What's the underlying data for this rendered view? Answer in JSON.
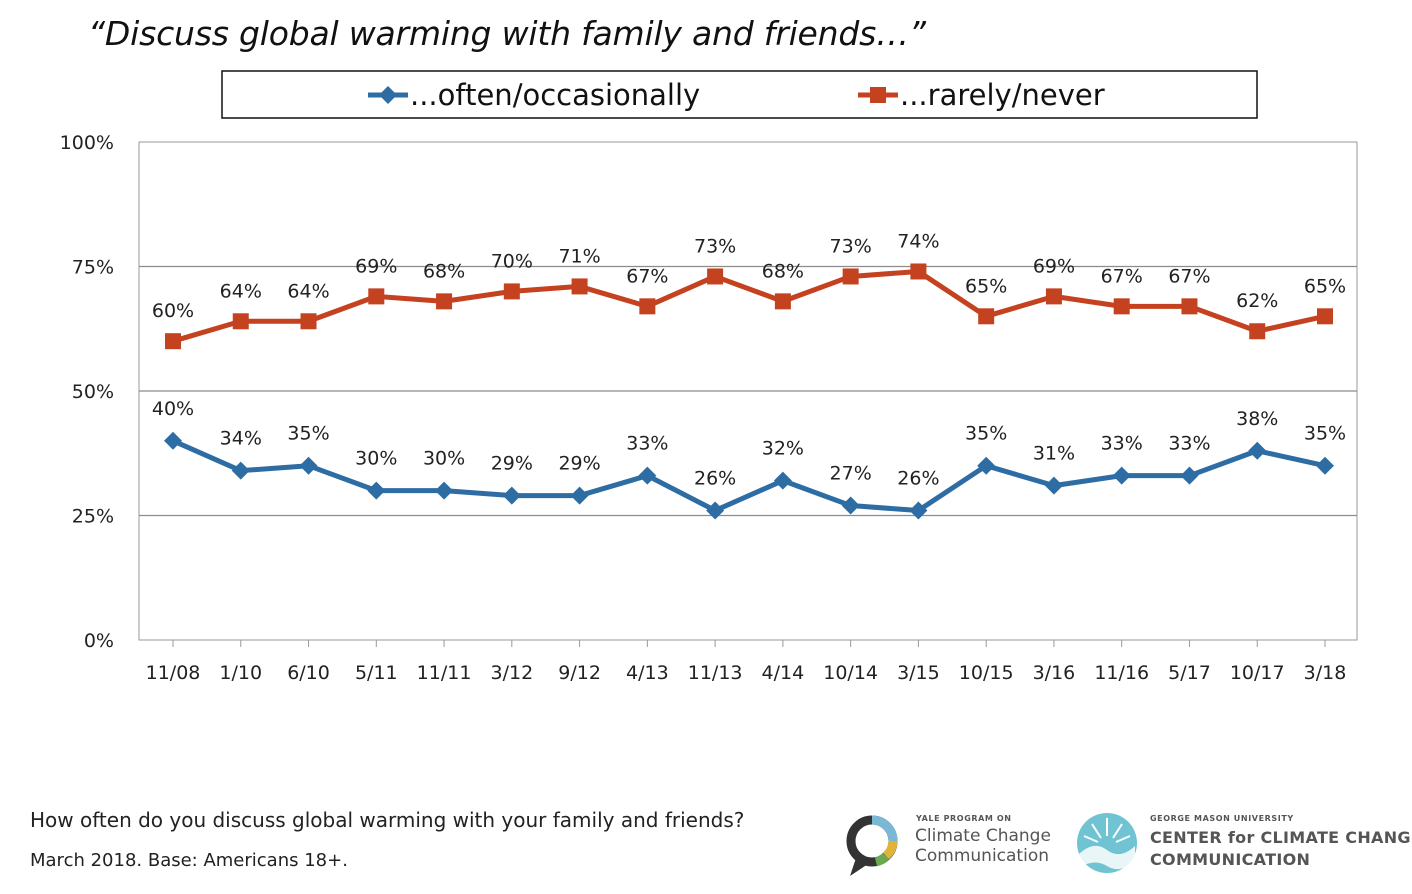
{
  "title": "“Discuss global warming with family and friends…”",
  "footer": {
    "question": "How often do you discuss global warming with your family and friends?",
    "base": "March 2018. Base: Americans 18+."
  },
  "logos": {
    "yale": {
      "small": "YALE PROGRAM ON",
      "line1": "Climate Change",
      "line2": "Communication"
    },
    "gmu": {
      "small": "GEORGE MASON UNIVERSITY",
      "line1": "CENTER for CLIMATE CHANGE",
      "line2": "COMMUNICATION"
    }
  },
  "chart_data": {
    "type": "line",
    "categories": [
      "11/08",
      "1/10",
      "6/10",
      "5/11",
      "11/11",
      "3/12",
      "9/12",
      "4/13",
      "11/13",
      "4/14",
      "10/14",
      "3/15",
      "10/15",
      "3/16",
      "11/16",
      "5/17",
      "10/17",
      "3/18"
    ],
    "series": [
      {
        "name": "...often/occasionally",
        "color": "#2e6da4",
        "marker": "diamond",
        "values": [
          40,
          34,
          35,
          30,
          30,
          29,
          29,
          33,
          26,
          32,
          27,
          26,
          35,
          31,
          33,
          33,
          38,
          35
        ]
      },
      {
        "name": "...rarely/never",
        "color": "#c4421f",
        "marker": "square",
        "values": [
          60,
          64,
          64,
          69,
          68,
          70,
          71,
          67,
          73,
          68,
          73,
          74,
          65,
          69,
          67,
          67,
          62,
          65
        ]
      }
    ],
    "yticks": [
      "0%",
      "25%",
      "50%",
      "75%",
      "100%"
    ],
    "ylim": [
      0,
      100
    ],
    "data_label_suffix": "%",
    "grid": true,
    "legend": "top"
  }
}
